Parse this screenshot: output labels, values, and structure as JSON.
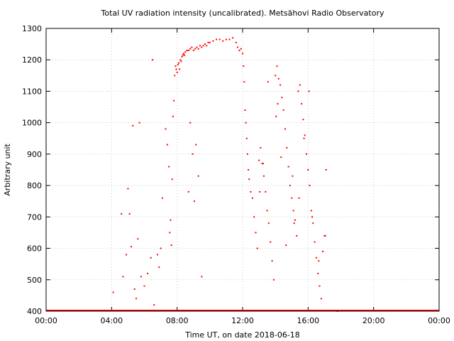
{
  "chart_data": {
    "type": "scatter",
    "title": "Total UV radiation intensity (uncalibrated). Metsähovi Radio Observatory",
    "xlabel": "Time UT, on date 2018-06-18",
    "ylabel": "Arbitrary unit",
    "xlim": [
      0,
      24
    ],
    "ylim": [
      400,
      1300
    ],
    "x_unit": "hours UT",
    "x_tick_values": [
      0,
      4,
      8,
      12,
      16,
      20,
      24
    ],
    "x_ticks": [
      "00:00",
      "04:00",
      "08:00",
      "12:00",
      "16:00",
      "20:00",
      "00:00"
    ],
    "y_tick_values": [
      400,
      500,
      600,
      700,
      800,
      900,
      1000,
      1100,
      1200,
      1300
    ],
    "y_ticks": [
      "400",
      "500",
      "600",
      "700",
      "800",
      "900",
      "1000",
      "1100",
      "1200",
      "1300"
    ],
    "grid": true,
    "marker_color": "#ff0000",
    "series": [
      {
        "x": [
          4.1,
          4.6,
          4.7,
          4.9,
          5.0,
          5.1,
          5.2,
          5.4,
          5.5,
          5.6,
          5.8,
          6.0,
          6.2,
          6.4,
          6.6,
          6.8,
          7.0,
          7.1,
          7.3,
          7.4,
          7.5,
          7.55,
          7.6,
          7.7,
          7.75,
          7.8,
          7.85,
          7.9,
          7.95,
          8.0,
          8.05,
          8.1,
          8.15,
          8.2,
          8.25,
          8.3,
          8.35,
          8.4,
          8.45,
          8.5,
          8.6,
          8.7,
          8.8,
          8.9,
          9.0,
          9.1,
          9.2,
          9.3,
          9.4,
          9.5,
          9.6,
          9.7,
          9.8,
          9.9,
          10.0,
          10.2,
          10.4,
          10.6,
          10.8,
          11.0,
          11.2,
          11.4,
          11.6,
          11.7,
          11.8,
          11.9,
          12.0,
          12.05,
          12.1,
          12.15,
          12.2,
          12.25,
          12.3,
          12.35,
          12.4,
          12.5,
          12.6,
          12.7,
          12.8,
          12.9,
          13.0,
          13.1,
          13.2,
          13.3,
          13.4,
          13.5,
          13.6,
          13.7,
          13.8,
          13.9,
          14.0,
          14.1,
          14.2,
          14.3,
          14.4,
          14.5,
          14.6,
          14.7,
          14.8,
          14.9,
          15.0,
          15.1,
          15.2,
          15.3,
          15.4,
          15.5,
          15.6,
          15.7,
          15.8,
          15.9,
          16.0,
          16.1,
          16.2,
          16.3,
          16.4,
          16.5,
          16.6,
          16.7,
          16.8,
          16.9,
          17.0,
          17.1,
          9.05,
          9.15,
          8.95,
          9.3,
          9.5,
          8.7,
          8.8,
          7.65,
          6.9,
          6.5,
          5.3,
          5.7,
          13.05,
          13.25,
          13.55,
          14.05,
          14.15,
          14.35,
          14.65,
          15.05,
          15.15,
          15.45,
          15.75,
          16.05,
          16.25,
          16.65,
          17.05,
          17.8
        ],
        "y": [
          460,
          710,
          510,
          580,
          790,
          710,
          605,
          470,
          440,
          630,
          510,
          480,
          520,
          570,
          420,
          580,
          600,
          760,
          980,
          930,
          860,
          650,
          690,
          820,
          1020,
          1070,
          1150,
          1180,
          1170,
          1160,
          1185,
          1190,
          1170,
          1200,
          1195,
          1210,
          1215,
          1220,
          1215,
          1225,
          1230,
          1230,
          1235,
          1240,
          1230,
          1235,
          1240,
          1235,
          1245,
          1240,
          1245,
          1250,
          1245,
          1255,
          1255,
          1260,
          1265,
          1265,
          1260,
          1265,
          1265,
          1270,
          1255,
          1240,
          1230,
          1235,
          1220,
          1180,
          1130,
          1040,
          1000,
          950,
          900,
          850,
          820,
          780,
          760,
          700,
          650,
          600,
          880,
          920,
          870,
          830,
          780,
          720,
          680,
          620,
          560,
          500,
          1150,
          1180,
          1140,
          1120,
          1080,
          1040,
          980,
          920,
          860,
          800,
          760,
          720,
          690,
          640,
          1100,
          1120,
          1060,
          1010,
          960,
          900,
          850,
          800,
          720,
          680,
          620,
          570,
          520,
          480,
          440,
          590,
          640,
          850,
          750,
          930,
          900,
          830,
          510,
          780,
          1000,
          610,
          540,
          1200,
          990,
          1000,
          780,
          870,
          1130,
          1020,
          1060,
          890,
          610,
          830,
          680,
          760,
          950,
          1100,
          700,
          560,
          640,
          400
        ]
      }
    ]
  }
}
